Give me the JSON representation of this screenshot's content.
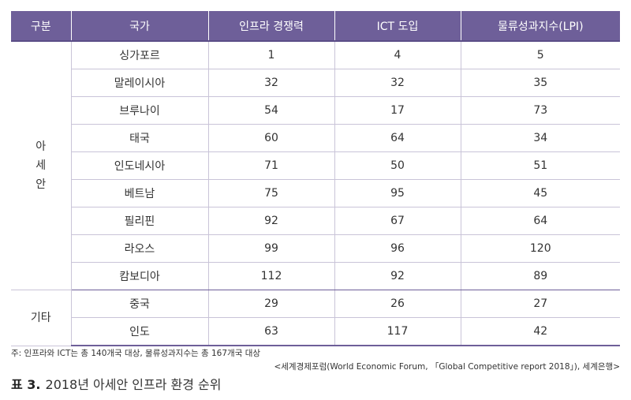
{
  "table": {
    "headers": [
      "구분",
      "국가",
      "인프라 경쟁력",
      "ICT 도입",
      "물류성과지수(LPI)"
    ],
    "groups": [
      {
        "label_chars": [
          "아",
          "세",
          "안"
        ],
        "rows": [
          [
            "싱가포르",
            "1",
            "4",
            "5"
          ],
          [
            "말레이시아",
            "32",
            "32",
            "35"
          ],
          [
            "브루나이",
            "54",
            "17",
            "73"
          ],
          [
            "태국",
            "60",
            "64",
            "34"
          ],
          [
            "인도네시아",
            "71",
            "50",
            "51"
          ],
          [
            "베트남",
            "75",
            "95",
            "45"
          ],
          [
            "필리핀",
            "92",
            "67",
            "64"
          ],
          [
            "라오스",
            "99",
            "96",
            "120"
          ],
          [
            "캄보디아",
            "112",
            "92",
            "89"
          ]
        ]
      },
      {
        "label_chars": [
          "기타"
        ],
        "rows": [
          [
            "중국",
            "29",
            "26",
            "27"
          ],
          [
            "인도",
            "63",
            "117",
            "42"
          ]
        ]
      }
    ]
  },
  "note": "주: 인프라와 ICT는 총 140개국 대상, 물류성과지수는 총 167개국 대상",
  "source": "<세계경제포럼(World Economic Forum, 「Global Competitive report 2018」), 세계은행>",
  "caption": {
    "number": "표 3.",
    "title": "2018년 아세안 인프라 환경 순위"
  },
  "colors": {
    "header_bg": "#6e5f99",
    "header_text": "#ffffff",
    "row_divider": "#c9c4d8"
  }
}
